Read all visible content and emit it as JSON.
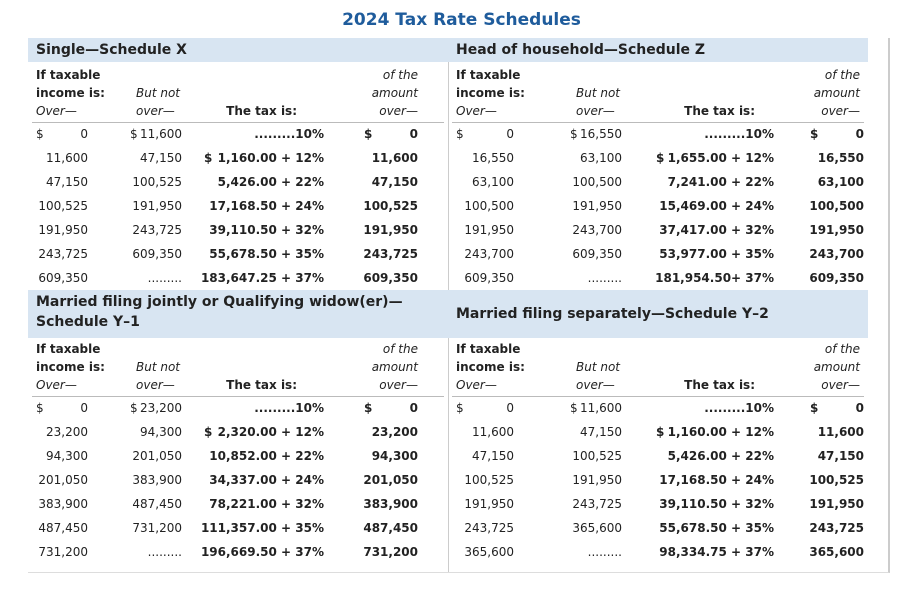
{
  "title": "2024 Tax Rate Schedules",
  "schedules": [
    {
      "title": [
        "Single—Schedule X"
      ],
      "columns": [
        [
          "If taxable",
          "income is:",
          "Over—"
        ],
        [
          "But not",
          "over—"
        ],
        [
          "The tax is:"
        ],
        [
          "of the",
          "amount",
          "over—"
        ]
      ],
      "rows": [
        [
          [
            "$",
            "0"
          ],
          [
            "$",
            "11,600"
          ],
          ".........10%",
          [
            "$",
            "0"
          ]
        ],
        [
          "11,600",
          "47,150",
          [
            "$",
            "1,160.00 + 12%"
          ],
          "11,600"
        ],
        [
          "47,150",
          "100,525",
          "5,426.00 + 22%",
          "47,150"
        ],
        [
          "100,525",
          "191,950",
          "17,168.50 + 24%",
          "100,525"
        ],
        [
          "191,950",
          "243,725",
          "39,110.50 + 32%",
          "191,950"
        ],
        [
          "243,725",
          "609,350",
          "55,678.50 + 35%",
          "243,725"
        ],
        [
          "609,350",
          ".........",
          "183,647.25 + 37%",
          "609,350"
        ]
      ]
    },
    {
      "title": [
        "Head of household—Schedule Z"
      ],
      "columns": [
        [
          "If taxable",
          "income is:",
          "Over—"
        ],
        [
          "But not",
          "over—"
        ],
        [
          "The tax is:"
        ],
        [
          "of the",
          "amount",
          "over—"
        ]
      ],
      "rows": [
        [
          [
            "$",
            "0"
          ],
          [
            "$",
            "16,550"
          ],
          ".........10%",
          [
            "$",
            "0"
          ]
        ],
        [
          "16,550",
          "63,100",
          [
            "$",
            "1,655.00 + 12%"
          ],
          "16,550"
        ],
        [
          "63,100",
          "100,500",
          "7,241.00 + 22%",
          "63,100"
        ],
        [
          "100,500",
          "191,950",
          "15,469.00 + 24%",
          "100,500"
        ],
        [
          "191,950",
          "243,700",
          "37,417.00 + 32%",
          "191,950"
        ],
        [
          "243,700",
          "609,350",
          "53,977.00 + 35%",
          "243,700"
        ],
        [
          "609,350",
          ".........",
          "181,954.50+ 37%",
          "609,350"
        ]
      ]
    },
    {
      "title": [
        "Married filing jointly or Qualifying widow(er)—",
        "Schedule Y–1"
      ],
      "columns": [
        [
          "If taxable",
          "income is:",
          "Over—"
        ],
        [
          "But not",
          "over—"
        ],
        [
          "The tax is:"
        ],
        [
          "of the",
          "amount",
          "over—"
        ]
      ],
      "rows": [
        [
          [
            "$",
            "0"
          ],
          [
            "$",
            "23,200"
          ],
          ".........10%",
          [
            "$",
            "0"
          ]
        ],
        [
          "23,200",
          "94,300",
          [
            "$",
            "2,320.00 + 12%"
          ],
          "23,200"
        ],
        [
          "94,300",
          "201,050",
          "10,852.00 + 22%",
          "94,300"
        ],
        [
          "201,050",
          "383,900",
          "34,337.00 + 24%",
          "201,050"
        ],
        [
          "383,900",
          "487,450",
          "78,221.00 + 32%",
          "383,900"
        ],
        [
          "487,450",
          "731,200",
          "111,357.00 + 35%",
          "487,450"
        ],
        [
          "731,200",
          ".........",
          "196,669.50 + 37%",
          "731,200"
        ]
      ]
    },
    {
      "title": [
        "Married filing separately—Schedule Y–2"
      ],
      "columns": [
        [
          "If taxable",
          "income is:",
          "Over—"
        ],
        [
          "But not",
          "over—"
        ],
        [
          "The tax is:"
        ],
        [
          "of the",
          "amount",
          "over—"
        ]
      ],
      "rows": [
        [
          [
            "$",
            "0"
          ],
          [
            "$",
            "11,600"
          ],
          ".........10%",
          [
            "$",
            "0"
          ]
        ],
        [
          "11,600",
          "47,150",
          [
            "$",
            "1,160.00 + 12%"
          ],
          "11,600"
        ],
        [
          "47,150",
          "100,525",
          "5,426.00 + 22%",
          "47,150"
        ],
        [
          "100,525",
          "191,950",
          "17,168.50 + 24%",
          "100,525"
        ],
        [
          "191,950",
          "243,725",
          "39,110.50 + 32%",
          "191,950"
        ],
        [
          "243,725",
          "365,600",
          "55,678.50 + 35%",
          "243,725"
        ],
        [
          "365,600",
          ".........",
          "98,334.75 + 37%",
          "365,600"
        ]
      ]
    }
  ]
}
